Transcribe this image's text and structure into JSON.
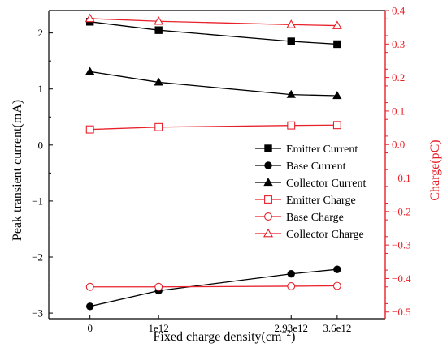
{
  "chart_data": {
    "type": "line",
    "title": "",
    "xlabel": "Fixed charge density(cm",
    "xlabel_sup": "−2",
    "xlabel_close": ")",
    "ylabel_left": "Peak transient current(mA)",
    "ylabel_right": "Charge(pC)",
    "x": [
      0,
      1000000000000.0,
      2930000000000.0,
      3600000000000.0
    ],
    "x_tick_labels": [
      "0",
      "1e12",
      "2.93e12",
      "3.6e12"
    ],
    "y_left_range": [
      -3.1,
      2.4
    ],
    "y_left_ticks": [
      2,
      1,
      0,
      -1,
      -2,
      -3
    ],
    "y_left_tick_labels": [
      "2",
      "1",
      "0",
      "−1",
      "−2",
      "−3"
    ],
    "y_right_range": [
      -0.52,
      0.4
    ],
    "y_right_ticks": [
      0.4,
      0.3,
      0.2,
      0.1,
      0.0,
      -0.1,
      -0.2,
      -0.3,
      -0.4,
      -0.5
    ],
    "y_right_tick_labels": [
      "0.4",
      "0.3",
      "0.2",
      "0.1",
      "0.0",
      "−0.1",
      "−0.2",
      "−0.3",
      "−0.4",
      "−0.5"
    ],
    "right_axis_color": "#e8202a",
    "legend_position": "right-center",
    "series": [
      {
        "name": "Emitter Current",
        "axis": "left",
        "marker": "square",
        "filled": true,
        "color": "#000000",
        "values": [
          2.2,
          2.05,
          1.85,
          1.8
        ]
      },
      {
        "name": "Base Current",
        "axis": "left",
        "marker": "circle",
        "filled": true,
        "color": "#000000",
        "values": [
          -2.88,
          -2.6,
          -2.3,
          -2.22
        ]
      },
      {
        "name": "Collector Current",
        "axis": "left",
        "marker": "triangle",
        "filled": true,
        "color": "#000000",
        "values": [
          1.31,
          1.12,
          0.9,
          0.88
        ]
      },
      {
        "name": "Emitter Charge",
        "axis": "right",
        "marker": "square",
        "filled": false,
        "color": "#e8202a",
        "values": [
          0.045,
          0.052,
          0.057,
          0.058
        ]
      },
      {
        "name": "Base Charge",
        "axis": "right",
        "marker": "circle",
        "filled": false,
        "color": "#e8202a",
        "values": [
          -0.425,
          -0.425,
          -0.423,
          -0.422
        ]
      },
      {
        "name": "Collector Charge",
        "axis": "right",
        "marker": "triangle",
        "filled": false,
        "color": "#e8202a",
        "values": [
          0.376,
          0.368,
          0.358,
          0.355
        ]
      }
    ]
  }
}
